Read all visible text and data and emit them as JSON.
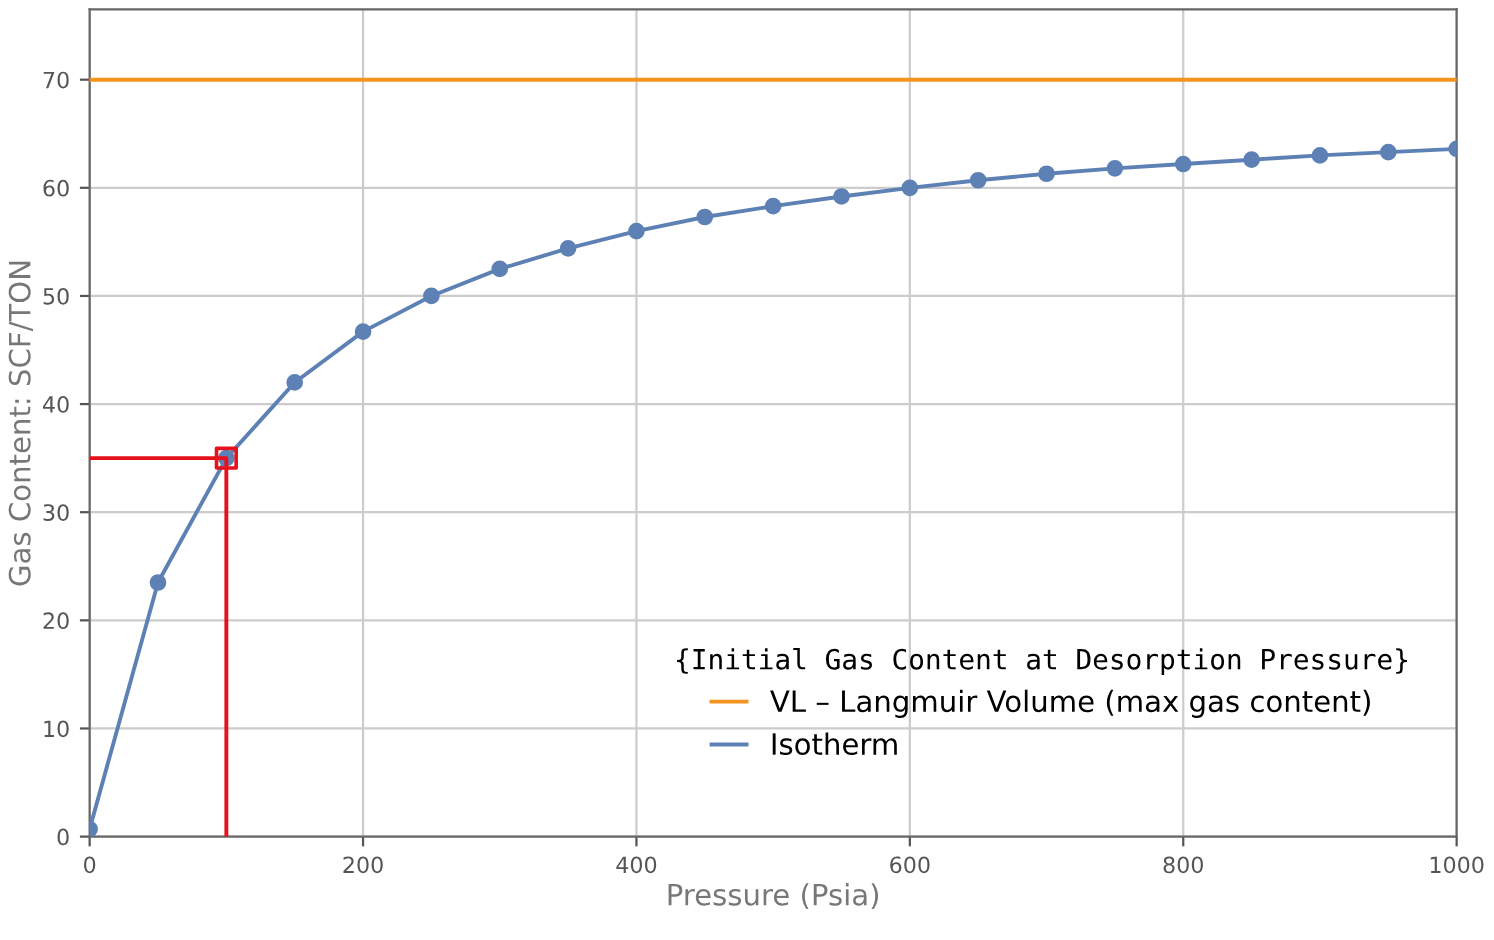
{
  "chart_data": {
    "type": "line",
    "xlabel": "Pressure (Psia)",
    "ylabel": "Gas Content: SCF/TON",
    "legend_title": "{Initial Gas Content at Desorption Pressure}",
    "legend": "bottom right",
    "grid": true,
    "xlim": [
      0,
      1000
    ],
    "ylim": [
      0,
      76.5
    ],
    "xticks": [
      0,
      200,
      400,
      600,
      800,
      1000
    ],
    "yticks": [
      0,
      10,
      20,
      30,
      40,
      50,
      60,
      70
    ],
    "series": [
      {
        "name": "VL – Langmuir Volume (max gas content)",
        "color": "#f5931f",
        "marker": "none",
        "x": [
          0,
          1000
        ],
        "values": [
          70,
          70
        ]
      },
      {
        "name": "Isotherm",
        "color": "#5e81b5",
        "marker": "circle",
        "x": [
          0,
          50,
          100,
          150,
          200,
          250,
          300,
          350,
          400,
          450,
          500,
          550,
          600,
          650,
          700,
          750,
          800,
          850,
          900,
          950,
          1000
        ],
        "values": [
          0.7,
          23.5,
          35,
          42,
          46.7,
          50,
          52.5,
          54.4,
          56,
          57.3,
          58.3,
          59.2,
          60,
          60.7,
          61.3,
          61.8,
          62.2,
          62.6,
          63,
          63.3,
          63.6
        ]
      },
      {
        "color": "#e8101a",
        "marker": "none",
        "x": [
          0,
          100,
          100
        ],
        "values": [
          35,
          35,
          0
        ]
      },
      {
        "color": "#e8101a",
        "type": "scatter",
        "marker": "square",
        "x": [
          100
        ],
        "values": [
          35
        ]
      }
    ]
  }
}
